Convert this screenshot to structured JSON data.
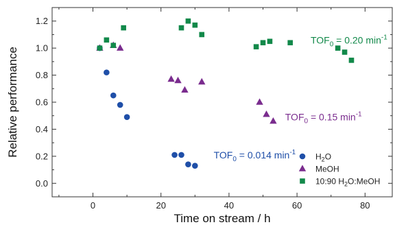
{
  "chart_data": {
    "type": "scatter",
    "xlabel": "Time on stream / h",
    "ylabel": "Relative performance",
    "xlim": [
      -12,
      88
    ],
    "ylim": [
      -0.1,
      1.3
    ],
    "x_ticks": [
      0,
      20,
      40,
      60,
      80
    ],
    "y_ticks": [
      0.0,
      0.2,
      0.4,
      0.6,
      0.8,
      1.0,
      1.2
    ],
    "x_tick_labels": [
      "0",
      "20",
      "40",
      "60",
      "80"
    ],
    "y_tick_labels": [
      "0.0",
      "0.2",
      "0.4",
      "0.6",
      "0.8",
      "1.0",
      "1.2"
    ],
    "grid": false,
    "legend_position": "bottom-right",
    "series": [
      {
        "name": "H2O",
        "legend_main": "H",
        "legend_sub": "2",
        "legend_rest": "O",
        "marker": "circle",
        "color": "#1f4fa8",
        "points": [
          [
            2,
            1.0
          ],
          [
            4,
            0.82
          ],
          [
            6,
            0.65
          ],
          [
            8,
            0.58
          ],
          [
            10,
            0.49
          ],
          [
            24,
            0.21
          ],
          [
            26,
            0.21
          ],
          [
            28,
            0.14
          ],
          [
            30,
            0.13
          ]
        ]
      },
      {
        "name": "MeOH",
        "legend_main": "MeOH",
        "legend_sub": "",
        "legend_rest": "",
        "marker": "triangle",
        "color": "#7a2c8e",
        "points": [
          [
            2,
            1.0
          ],
          [
            6,
            1.02
          ],
          [
            8,
            1.0
          ],
          [
            23,
            0.77
          ],
          [
            25,
            0.76
          ],
          [
            27,
            0.69
          ],
          [
            32,
            0.75
          ],
          [
            49,
            0.6
          ],
          [
            51,
            0.51
          ],
          [
            53,
            0.46
          ]
        ]
      },
      {
        "name": "10:90 H2O:MeOH",
        "legend_main": "10:90 H",
        "legend_sub": "2",
        "legend_rest": "O:MeOH",
        "marker": "square",
        "color": "#12894a",
        "points": [
          [
            2,
            1.0
          ],
          [
            4,
            1.06
          ],
          [
            6,
            1.02
          ],
          [
            9,
            1.15
          ],
          [
            26,
            1.15
          ],
          [
            28,
            1.2
          ],
          [
            30,
            1.17
          ],
          [
            32,
            1.1
          ],
          [
            48,
            1.01
          ],
          [
            50,
            1.04
          ],
          [
            52,
            1.05
          ],
          [
            58,
            1.04
          ],
          [
            72,
            1.0
          ],
          [
            74,
            0.97
          ],
          [
            76,
            0.91
          ]
        ]
      }
    ],
    "annotations": [
      {
        "main": "TOF",
        "sub": "0",
        "rest": " = 0.014 min",
        "sup": "-1",
        "color": "#1f4fa8",
        "x": 35.5,
        "y": 0.21
      },
      {
        "main": "TOF",
        "sub": "0",
        "rest": " = 0.15 min",
        "sup": "-1",
        "color": "#7a2c8e",
        "x": 56.5,
        "y": 0.49
      },
      {
        "main": "TOF",
        "sub": "0",
        "rest": " = 0.20 min",
        "sup": "-1",
        "color": "#12894a",
        "x": 64,
        "y": 1.06
      }
    ]
  }
}
